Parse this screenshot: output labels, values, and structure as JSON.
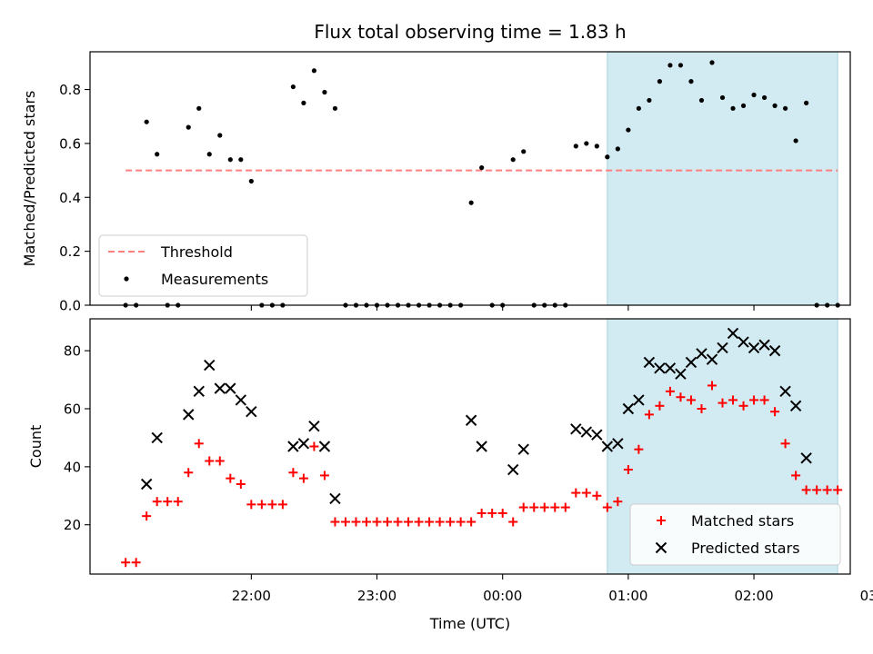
{
  "figure": {
    "title": "Flux total observing time = 1.83 h",
    "xlabel": "Time (UTC)"
  },
  "colors": {
    "highlight": "#add8e6",
    "threshold": "#ff7f7f",
    "matched": "#ff0000",
    "predicted": "#000000",
    "measurements": "#000000"
  },
  "chart_data": [
    {
      "type": "scatter",
      "ylabel": "Matched/Predicted stars",
      "ylim": [
        0,
        0.94
      ],
      "yticks": [
        0.0,
        0.2,
        0.4,
        0.6,
        0.8
      ],
      "ytick_labels": [
        "0.0",
        "0.2",
        "0.4",
        "0.6",
        "0.8"
      ],
      "x_unit": "minutes since 21:00 UTC",
      "xlim": [
        -17,
        346
      ],
      "xticks": [
        60,
        120,
        180,
        240,
        300,
        360
      ],
      "xtick_labels": [
        "22:00",
        "23:00",
        "00:00",
        "01:00",
        "02:00",
        "03:00"
      ],
      "highlight": {
        "x_start": 230,
        "x_end": 340
      },
      "threshold": {
        "name": "Threshold",
        "y": 0.5,
        "x_start": 0,
        "x_end": 340
      },
      "legend": {
        "position": "lower left",
        "entries": [
          "Threshold",
          "Measurements"
        ]
      },
      "series": [
        {
          "name": "Measurements",
          "points": [
            [
              0,
              0.0
            ],
            [
              5,
              0.0
            ],
            [
              10,
              0.68
            ],
            [
              15,
              0.56
            ],
            [
              20,
              0.0
            ],
            [
              25,
              0.0
            ],
            [
              30,
              0.66
            ],
            [
              35,
              0.73
            ],
            [
              40,
              0.56
            ],
            [
              45,
              0.63
            ],
            [
              50,
              0.54
            ],
            [
              55,
              0.54
            ],
            [
              60,
              0.46
            ],
            [
              65,
              0.0
            ],
            [
              70,
              0.0
            ],
            [
              75,
              0.0
            ],
            [
              80,
              0.81
            ],
            [
              85,
              0.75
            ],
            [
              90,
              0.87
            ],
            [
              95,
              0.79
            ],
            [
              100,
              0.73
            ],
            [
              105,
              0.0
            ],
            [
              110,
              0.0
            ],
            [
              115,
              0.0
            ],
            [
              120,
              0.0
            ],
            [
              125,
              0.0
            ],
            [
              130,
              0.0
            ],
            [
              135,
              0.0
            ],
            [
              140,
              0.0
            ],
            [
              145,
              0.0
            ],
            [
              150,
              0.0
            ],
            [
              155,
              0.0
            ],
            [
              160,
              0.0
            ],
            [
              165,
              0.38
            ],
            [
              170,
              0.51
            ],
            [
              175,
              0.0
            ],
            [
              180,
              0.0
            ],
            [
              185,
              0.54
            ],
            [
              190,
              0.57
            ],
            [
              195,
              0.0
            ],
            [
              200,
              0.0
            ],
            [
              205,
              0.0
            ],
            [
              210,
              0.0
            ],
            [
              215,
              0.59
            ],
            [
              220,
              0.6
            ],
            [
              225,
              0.59
            ],
            [
              230,
              0.55
            ],
            [
              235,
              0.58
            ],
            [
              240,
              0.65
            ],
            [
              245,
              0.73
            ],
            [
              250,
              0.76
            ],
            [
              255,
              0.83
            ],
            [
              260,
              0.89
            ],
            [
              265,
              0.89
            ],
            [
              270,
              0.83
            ],
            [
              275,
              0.76
            ],
            [
              280,
              0.9
            ],
            [
              285,
              0.77
            ],
            [
              290,
              0.73
            ],
            [
              295,
              0.74
            ],
            [
              300,
              0.78
            ],
            [
              305,
              0.77
            ],
            [
              310,
              0.74
            ],
            [
              315,
              0.73
            ],
            [
              320,
              0.61
            ],
            [
              325,
              0.75
            ],
            [
              330,
              0.0
            ],
            [
              335,
              0.0
            ],
            [
              340,
              0.0
            ]
          ]
        }
      ]
    },
    {
      "type": "scatter",
      "ylabel": "Count",
      "ylim": [
        3,
        91
      ],
      "yticks": [
        20,
        40,
        60,
        80
      ],
      "ytick_labels": [
        "20",
        "40",
        "60",
        "80"
      ],
      "x_unit": "minutes since 21:00 UTC",
      "xlim": [
        -17,
        346
      ],
      "xticks": [
        60,
        120,
        180,
        240,
        300,
        360
      ],
      "xtick_labels": [
        "22:00",
        "23:00",
        "00:00",
        "01:00",
        "02:00",
        "03:00"
      ],
      "highlight": {
        "x_start": 230,
        "x_end": 340
      },
      "legend": {
        "position": "lower right",
        "entries": [
          "Matched stars",
          "Predicted stars"
        ]
      },
      "series": [
        {
          "name": "Matched stars",
          "marker": "plus",
          "points": [
            [
              0,
              7
            ],
            [
              5,
              7
            ],
            [
              10,
              23
            ],
            [
              15,
              28
            ],
            [
              20,
              28
            ],
            [
              25,
              28
            ],
            [
              30,
              38
            ],
            [
              35,
              48
            ],
            [
              40,
              42
            ],
            [
              45,
              42
            ],
            [
              50,
              36
            ],
            [
              55,
              34
            ],
            [
              60,
              27
            ],
            [
              65,
              27
            ],
            [
              70,
              27
            ],
            [
              75,
              27
            ],
            [
              80,
              38
            ],
            [
              85,
              36
            ],
            [
              90,
              47
            ],
            [
              95,
              37
            ],
            [
              100,
              21
            ],
            [
              105,
              21
            ],
            [
              110,
              21
            ],
            [
              115,
              21
            ],
            [
              120,
              21
            ],
            [
              125,
              21
            ],
            [
              130,
              21
            ],
            [
              135,
              21
            ],
            [
              140,
              21
            ],
            [
              145,
              21
            ],
            [
              150,
              21
            ],
            [
              155,
              21
            ],
            [
              160,
              21
            ],
            [
              165,
              21
            ],
            [
              170,
              24
            ],
            [
              175,
              24
            ],
            [
              180,
              24
            ],
            [
              185,
              21
            ],
            [
              190,
              26
            ],
            [
              195,
              26
            ],
            [
              200,
              26
            ],
            [
              205,
              26
            ],
            [
              210,
              26
            ],
            [
              215,
              31
            ],
            [
              220,
              31
            ],
            [
              225,
              30
            ],
            [
              230,
              26
            ],
            [
              235,
              28
            ],
            [
              240,
              39
            ],
            [
              245,
              46
            ],
            [
              250,
              58
            ],
            [
              255,
              61
            ],
            [
              260,
              66
            ],
            [
              265,
              64
            ],
            [
              270,
              63
            ],
            [
              275,
              60
            ],
            [
              280,
              68
            ],
            [
              285,
              62
            ],
            [
              290,
              63
            ],
            [
              295,
              61
            ],
            [
              300,
              63
            ],
            [
              305,
              63
            ],
            [
              310,
              59
            ],
            [
              315,
              48
            ],
            [
              320,
              37
            ],
            [
              325,
              32
            ],
            [
              330,
              32
            ],
            [
              335,
              32
            ],
            [
              340,
              32
            ]
          ]
        },
        {
          "name": "Predicted stars",
          "marker": "x",
          "points": [
            [
              10,
              34
            ],
            [
              15,
              50
            ],
            [
              30,
              58
            ],
            [
              35,
              66
            ],
            [
              40,
              75
            ],
            [
              45,
              67
            ],
            [
              50,
              67
            ],
            [
              55,
              63
            ],
            [
              60,
              59
            ],
            [
              80,
              47
            ],
            [
              85,
              48
            ],
            [
              90,
              54
            ],
            [
              95,
              47
            ],
            [
              100,
              29
            ],
            [
              165,
              56
            ],
            [
              170,
              47
            ],
            [
              185,
              39
            ],
            [
              190,
              46
            ],
            [
              215,
              53
            ],
            [
              220,
              52
            ],
            [
              225,
              51
            ],
            [
              230,
              47
            ],
            [
              235,
              48
            ],
            [
              240,
              60
            ],
            [
              245,
              63
            ],
            [
              250,
              76
            ],
            [
              255,
              74
            ],
            [
              260,
              74
            ],
            [
              265,
              72
            ],
            [
              270,
              76
            ],
            [
              275,
              79
            ],
            [
              280,
              77
            ],
            [
              285,
              81
            ],
            [
              290,
              86
            ],
            [
              295,
              83
            ],
            [
              300,
              81
            ],
            [
              305,
              82
            ],
            [
              310,
              80
            ],
            [
              315,
              66
            ],
            [
              320,
              61
            ],
            [
              325,
              43
            ]
          ]
        }
      ]
    }
  ]
}
